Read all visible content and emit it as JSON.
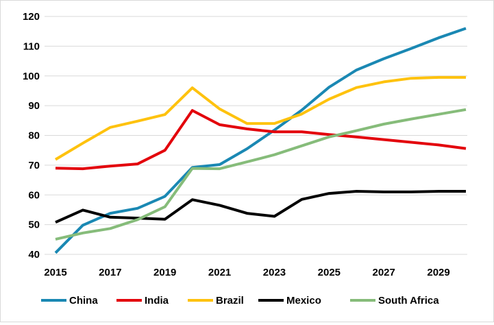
{
  "chart_data": {
    "type": "line",
    "title": "",
    "xlabel": "",
    "ylabel": "",
    "x": [
      2015,
      2016,
      2017,
      2018,
      2019,
      2020,
      2021,
      2022,
      2023,
      2024,
      2025,
      2026,
      2027,
      2028,
      2029,
      2030
    ],
    "xlim": [
      2015,
      2030
    ],
    "ylim": [
      40,
      120
    ],
    "x_ticks": [
      "2015",
      "2017",
      "2019",
      "2021",
      "2023",
      "2025",
      "2027",
      "2029"
    ],
    "y_ticks": [
      "40",
      "50",
      "60",
      "70",
      "80",
      "90",
      "100",
      "110",
      "120"
    ],
    "grid": "horizontal",
    "legend_position": "bottom",
    "series": [
      {
        "name": "China",
        "color": "#1a88b3",
        "values": [
          40.5,
          49.8,
          53.8,
          55.5,
          59.5,
          69.2,
          70.2,
          75.5,
          81.8,
          88.5,
          96.2,
          102.0,
          105.8,
          109.2,
          112.8,
          116.0
        ]
      },
      {
        "name": "India",
        "color": "#e3020b",
        "values": [
          69.0,
          68.8,
          69.7,
          70.4,
          75.0,
          88.4,
          83.6,
          82.2,
          81.2,
          81.2,
          80.3,
          79.5,
          78.6,
          77.7,
          76.8,
          75.6
        ]
      },
      {
        "name": "Brazil",
        "color": "#fec20e",
        "values": [
          71.9,
          77.4,
          82.7,
          84.8,
          87.0,
          96.0,
          88.9,
          84.0,
          84.0,
          87.2,
          92.2,
          96.1,
          98.0,
          99.2,
          99.5,
          99.5
        ]
      },
      {
        "name": "Mexico",
        "color": "#000000",
        "values": [
          50.8,
          54.9,
          52.5,
          52.2,
          51.8,
          58.4,
          56.5,
          53.8,
          52.8,
          58.5,
          60.5,
          61.2,
          61.0,
          61.0,
          61.2,
          61.2
        ]
      },
      {
        "name": "South Africa",
        "color": "#86bc7a",
        "values": [
          45.1,
          47.2,
          48.7,
          51.7,
          56.0,
          68.9,
          68.8,
          71.1,
          73.5,
          76.5,
          79.5,
          81.6,
          83.8,
          85.5,
          87.1,
          88.7
        ]
      }
    ]
  }
}
